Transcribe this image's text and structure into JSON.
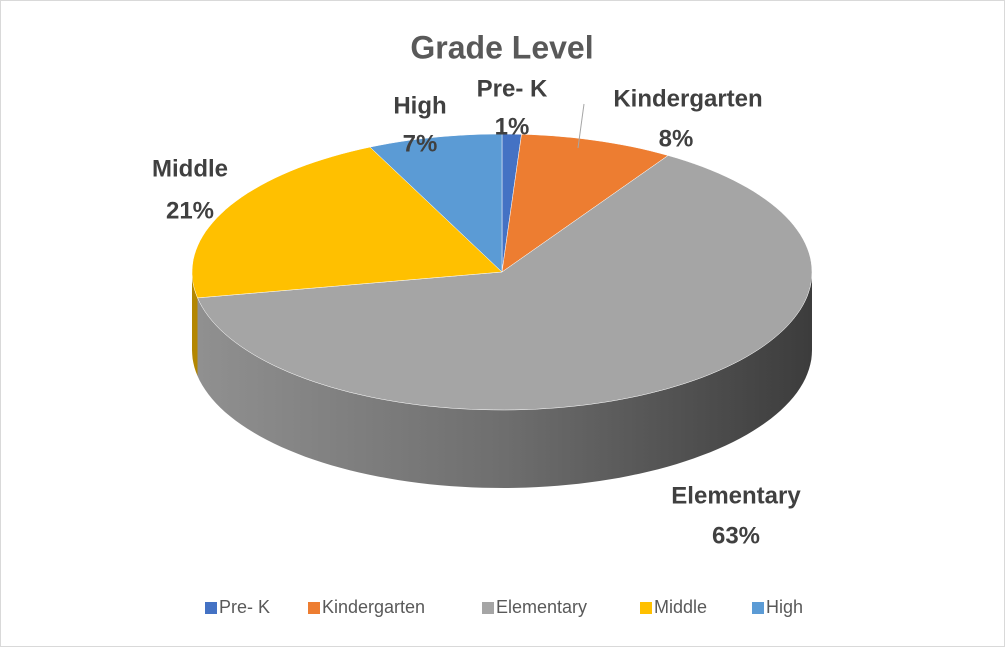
{
  "chart_data": {
    "type": "pie",
    "title": "Grade Level",
    "categories": [
      "Pre- K",
      "Kindergarten",
      "Elementary",
      "Middle",
      "High"
    ],
    "values": [
      1,
      8,
      63,
      21,
      7
    ],
    "value_labels": [
      "1%",
      "8%",
      "63%",
      "21%",
      "7%"
    ],
    "colors": [
      "#4472c4",
      "#ed7d31",
      "#a5a5a5",
      "#ffc000",
      "#5b9bd5"
    ],
    "legend": "bottom"
  }
}
